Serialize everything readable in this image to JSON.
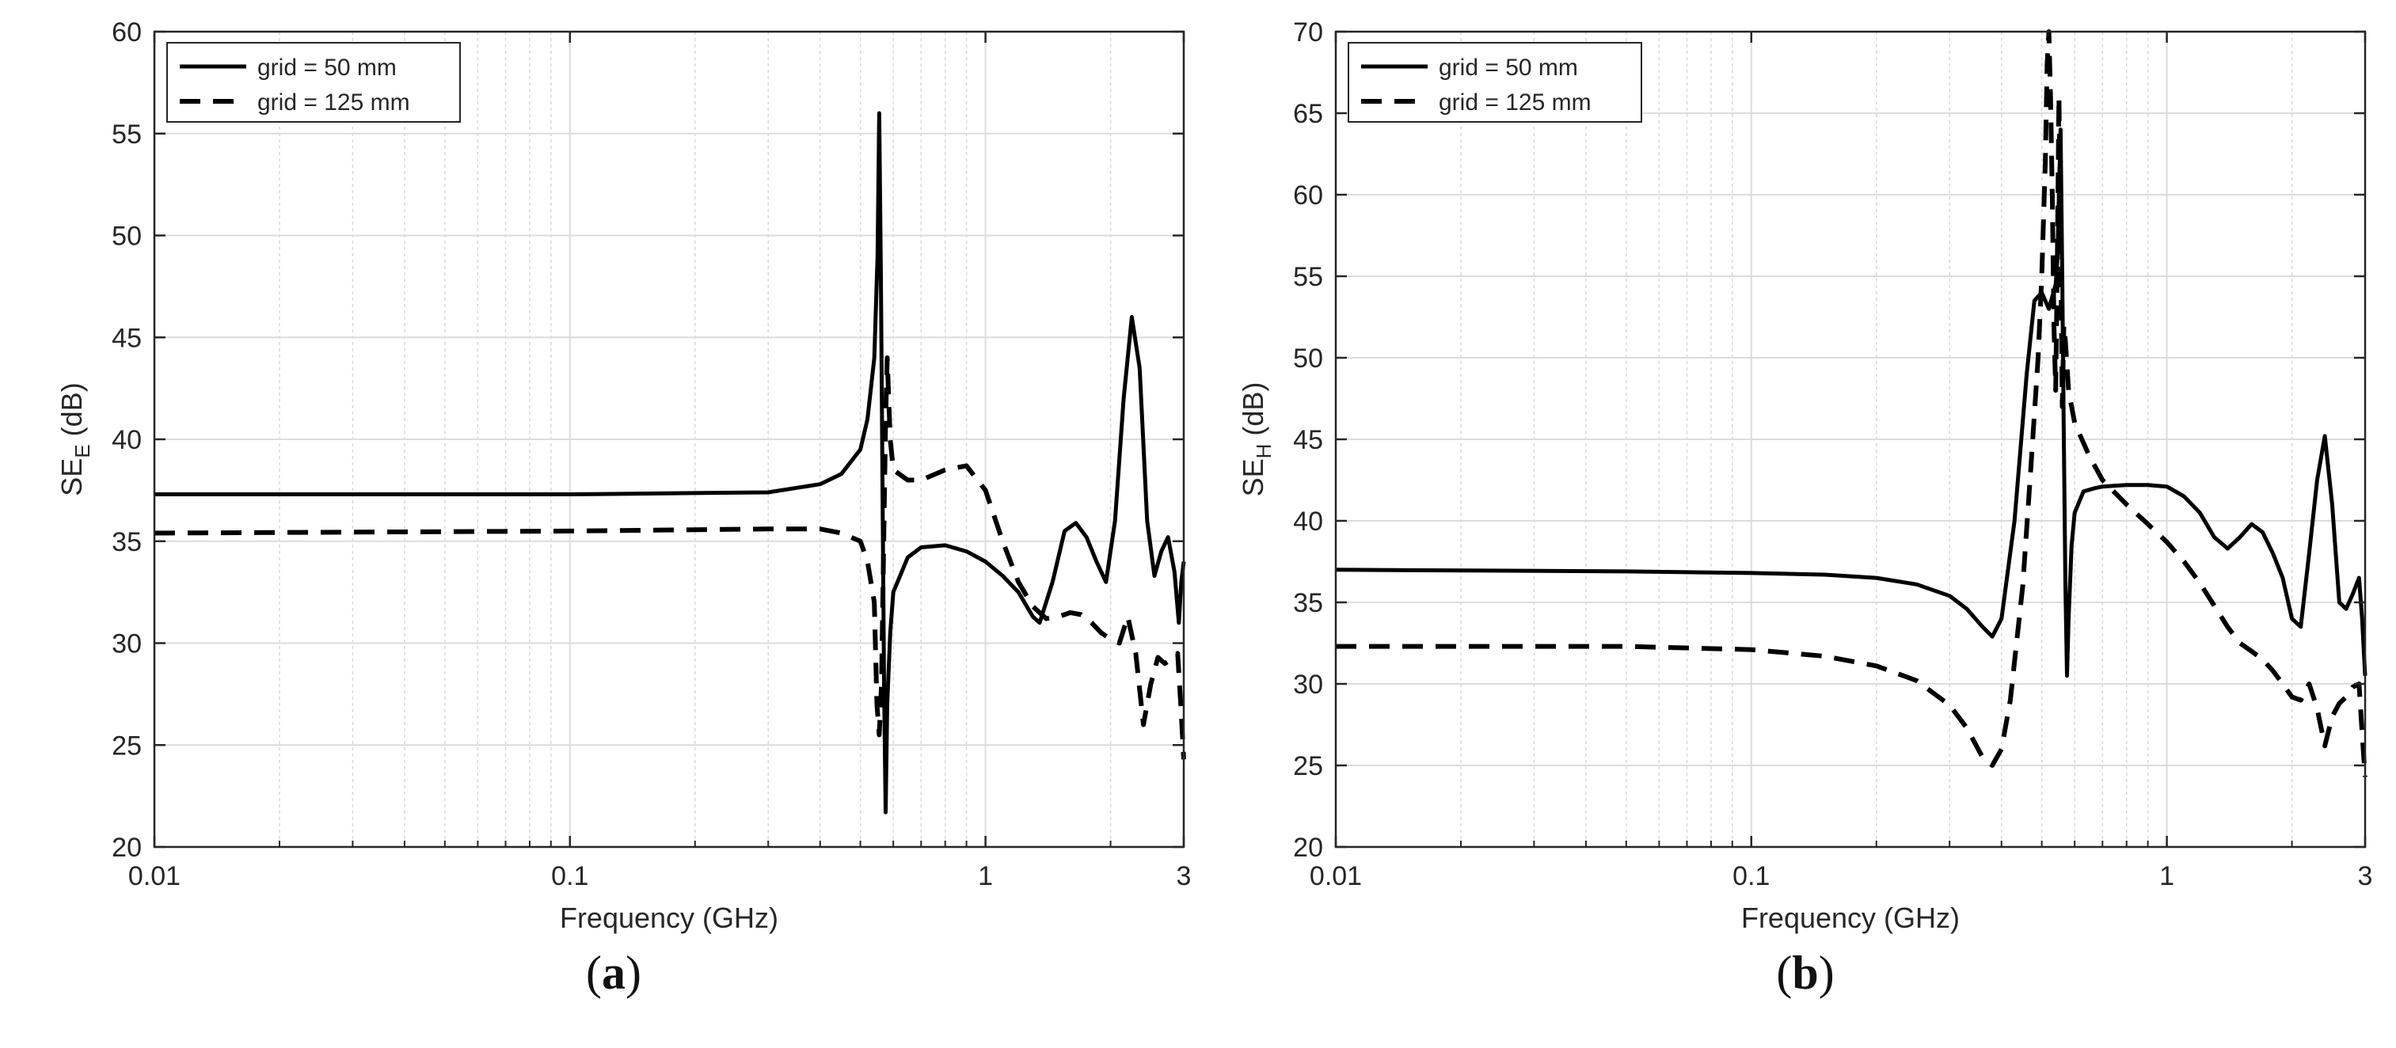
{
  "figure": {
    "caption_a": "a",
    "caption_b": "b"
  },
  "chart_data": [
    {
      "id": "a",
      "type": "line",
      "xscale": "log",
      "xlim": [
        0.01,
        3
      ],
      "ylim": [
        20,
        60
      ],
      "xticks": [
        0.01,
        0.1,
        1,
        3
      ],
      "xtick_labels": [
        "0.01",
        "0.1",
        "1",
        "3"
      ],
      "yticks": [
        20,
        25,
        30,
        35,
        40,
        45,
        50,
        55,
        60
      ],
      "ytick_labels": [
        "20",
        "25",
        "30",
        "35",
        "40",
        "45",
        "50",
        "55",
        "60"
      ],
      "xlabel": "Frequency (GHz)",
      "ylabel": "SE",
      "ylabel_sub": "E",
      "ylabel_unit": " (dB)",
      "grid": true,
      "legend_position": "top-left",
      "series": [
        {
          "name": "grid = 50 mm",
          "style": "solid",
          "x": [
            0.01,
            0.1,
            0.3,
            0.4,
            0.45,
            0.5,
            0.52,
            0.54,
            0.55,
            0.555,
            0.56,
            0.565,
            0.57,
            0.575,
            0.58,
            0.59,
            0.6,
            0.65,
            0.7,
            0.8,
            0.9,
            1.0,
            1.1,
            1.2,
            1.3,
            1.35,
            1.45,
            1.55,
            1.65,
            1.75,
            1.85,
            1.95,
            2.05,
            2.15,
            2.25,
            2.35,
            2.45,
            2.55,
            2.65,
            2.75,
            2.85,
            2.92,
            2.96,
            3.0
          ],
          "y": [
            37.3,
            37.3,
            37.4,
            37.8,
            38.3,
            39.5,
            41.0,
            44.0,
            49.0,
            56.0,
            48.0,
            38.0,
            28.0,
            21.7,
            27.0,
            30.5,
            32.5,
            34.2,
            34.7,
            34.8,
            34.5,
            34.0,
            33.3,
            32.5,
            31.3,
            31.0,
            33.0,
            35.5,
            35.9,
            35.2,
            34.0,
            33.0,
            36.0,
            42.0,
            46.0,
            43.5,
            36.0,
            33.3,
            34.5,
            35.2,
            33.5,
            31.0,
            33.0,
            34.0
          ]
        },
        {
          "name": "grid = 125 mm",
          "style": "dashed",
          "x": [
            0.01,
            0.1,
            0.3,
            0.4,
            0.45,
            0.5,
            0.52,
            0.54,
            0.548,
            0.555,
            0.562,
            0.57,
            0.575,
            0.58,
            0.59,
            0.6,
            0.65,
            0.7,
            0.8,
            0.9,
            1.0,
            1.1,
            1.2,
            1.3,
            1.4,
            1.5,
            1.6,
            1.7,
            1.8,
            1.9,
            2.0,
            2.1,
            2.2,
            2.3,
            2.4,
            2.5,
            2.6,
            2.7,
            2.8,
            2.9,
            2.95,
            3.0
          ],
          "y": [
            35.4,
            35.5,
            35.6,
            35.6,
            35.4,
            35.0,
            34.0,
            32.0,
            27.0,
            25.5,
            28.0,
            36.0,
            41.0,
            44.0,
            40.0,
            38.5,
            38.0,
            38.0,
            38.5,
            38.7,
            37.5,
            35.0,
            33.0,
            31.8,
            31.2,
            31.3,
            31.5,
            31.4,
            31.0,
            30.5,
            30.2,
            30.0,
            31.3,
            29.5,
            26.0,
            28.0,
            29.3,
            29.0,
            29.2,
            29.5,
            27.0,
            24.3
          ]
        }
      ]
    },
    {
      "id": "b",
      "type": "line",
      "xscale": "log",
      "xlim": [
        0.01,
        3
      ],
      "ylim": [
        20,
        70
      ],
      "xticks": [
        0.01,
        0.1,
        1,
        3
      ],
      "xtick_labels": [
        "0.01",
        "0.1",
        "1",
        "3"
      ],
      "yticks": [
        20,
        25,
        30,
        35,
        40,
        45,
        50,
        55,
        60,
        65,
        70
      ],
      "ytick_labels": [
        "20",
        "25",
        "30",
        "35",
        "40",
        "45",
        "50",
        "55",
        "60",
        "65",
        "70"
      ],
      "xlabel": "Frequency (GHz)",
      "ylabel": "SE",
      "ylabel_sub": "H",
      "ylabel_unit": " (dB)",
      "grid": true,
      "legend_position": "top-left",
      "series": [
        {
          "name": "grid = 50 mm",
          "style": "solid",
          "x": [
            0.01,
            0.05,
            0.1,
            0.15,
            0.2,
            0.25,
            0.3,
            0.33,
            0.36,
            0.38,
            0.4,
            0.43,
            0.46,
            0.48,
            0.5,
            0.52,
            0.54,
            0.545,
            0.55,
            0.555,
            0.56,
            0.565,
            0.57,
            0.575,
            0.58,
            0.59,
            0.6,
            0.63,
            0.67,
            0.7,
            0.8,
            0.9,
            1.0,
            1.1,
            1.2,
            1.3,
            1.4,
            1.5,
            1.6,
            1.7,
            1.8,
            1.9,
            2.0,
            2.1,
            2.2,
            2.3,
            2.4,
            2.5,
            2.6,
            2.7,
            2.8,
            2.9,
            2.95,
            3.0
          ],
          "y": [
            37.0,
            36.9,
            36.8,
            36.7,
            36.5,
            36.1,
            35.4,
            34.6,
            33.5,
            32.9,
            34.0,
            40.0,
            49.0,
            53.5,
            54.0,
            53.0,
            54.5,
            56.0,
            60.0,
            64.0,
            55.0,
            45.0,
            36.0,
            30.5,
            34.0,
            38.5,
            40.5,
            41.8,
            42.0,
            42.1,
            42.2,
            42.2,
            42.1,
            41.5,
            40.5,
            39.0,
            38.3,
            39.0,
            39.8,
            39.3,
            38.0,
            36.5,
            34.0,
            33.5,
            38.0,
            42.5,
            45.2,
            41.0,
            35.0,
            34.6,
            35.5,
            36.5,
            34.0,
            30.5
          ]
        },
        {
          "name": "grid = 125 mm",
          "style": "dashed",
          "x": [
            0.01,
            0.05,
            0.1,
            0.15,
            0.2,
            0.25,
            0.3,
            0.33,
            0.36,
            0.38,
            0.4,
            0.42,
            0.45,
            0.47,
            0.49,
            0.5,
            0.51,
            0.515,
            0.52,
            0.525,
            0.53,
            0.535,
            0.54,
            0.545,
            0.55,
            0.555,
            0.56,
            0.565,
            0.57,
            0.58,
            0.6,
            0.65,
            0.7,
            0.8,
            0.9,
            1.0,
            1.1,
            1.2,
            1.3,
            1.4,
            1.5,
            1.6,
            1.7,
            1.8,
            1.9,
            2.0,
            2.1,
            2.2,
            2.3,
            2.4,
            2.5,
            2.6,
            2.7,
            2.8,
            2.9,
            2.95,
            3.0
          ],
          "y": [
            32.3,
            32.3,
            32.1,
            31.7,
            31.1,
            30.2,
            28.7,
            27.3,
            25.5,
            25.0,
            26.0,
            29.0,
            36.0,
            43.0,
            50.0,
            55.0,
            62.0,
            68.0,
            70.0,
            66.0,
            60.0,
            52.0,
            48.0,
            56.0,
            66.0,
            58.0,
            47.0,
            52.0,
            51.0,
            48.0,
            46.0,
            44.0,
            42.5,
            41.0,
            39.8,
            38.7,
            37.5,
            36.2,
            34.8,
            33.5,
            32.5,
            32.0,
            31.5,
            30.8,
            30.0,
            29.2,
            29.0,
            30.0,
            28.5,
            26.2,
            28.0,
            28.8,
            29.2,
            29.8,
            30.0,
            27.0,
            24.3
          ]
        }
      ]
    }
  ]
}
